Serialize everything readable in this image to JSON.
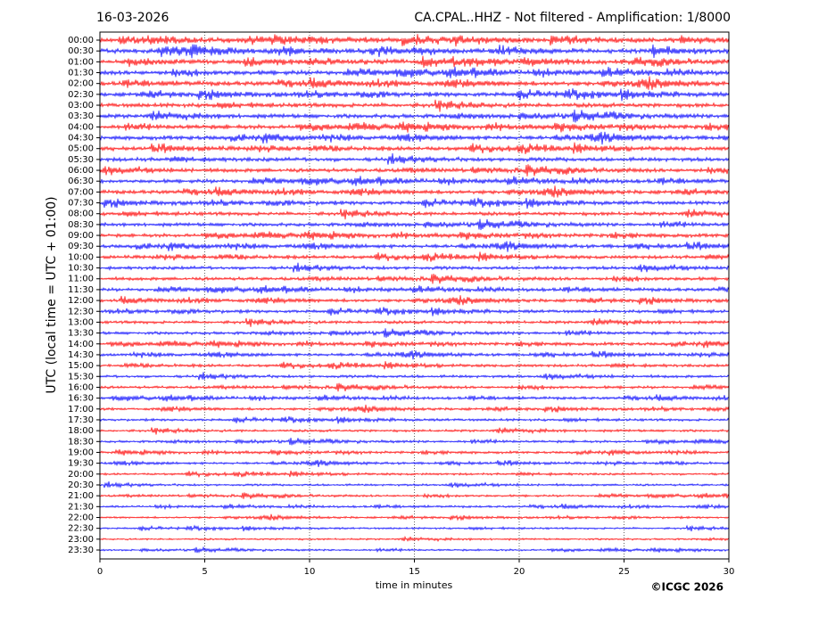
{
  "chart_data": {
    "type": "helicorder",
    "date": "16-03-2026",
    "title": "CA.CPAL..HHZ - Not filtered - Amplification: 1/8000",
    "ylabel": "UTC (local time = UTC + 01:00)",
    "xlabel": "time in minutes",
    "credit": "©ICGC 2026",
    "categories": [
      "00:00",
      "00:30",
      "01:00",
      "01:30",
      "02:00",
      "02:30",
      "03:00",
      "03:30",
      "04:00",
      "04:30",
      "05:00",
      "05:30",
      "06:00",
      "06:30",
      "07:00",
      "07:30",
      "08:00",
      "08:30",
      "09:00",
      "09:30",
      "10:00",
      "10:30",
      "11:00",
      "11:30",
      "12:00",
      "12:30",
      "13:00",
      "13:30",
      "14:00",
      "14:30",
      "15:00",
      "15:30",
      "16:00",
      "16:30",
      "17:00",
      "17:30",
      "18:00",
      "18:30",
      "19:00",
      "19:30",
      "20:00",
      "20:30",
      "21:00",
      "21:30",
      "22:00",
      "22:30",
      "23:00",
      "23:30"
    ],
    "colors": [
      "#ff0000",
      "#0000ff"
    ],
    "xlim": [
      0,
      30
    ],
    "xticks": [
      0,
      5,
      10,
      15,
      20,
      25,
      30
    ],
    "grid": true
  }
}
